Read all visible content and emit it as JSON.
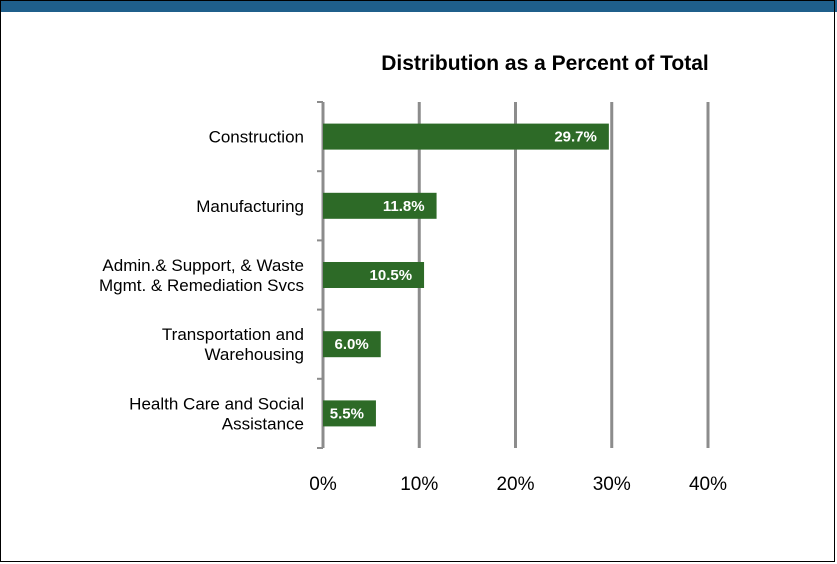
{
  "chart_data": {
    "type": "bar",
    "orientation": "horizontal",
    "title": "Distribution as a Percent of Total",
    "categories": [
      [
        "Construction"
      ],
      [
        "Manufacturing"
      ],
      [
        "Admin.& Support, & Waste",
        "Mgmt. & Remediation Svcs"
      ],
      [
        "Transportation and",
        "Warehousing"
      ],
      [
        "Health Care and Social",
        "Assistance"
      ]
    ],
    "values": [
      29.7,
      11.8,
      10.5,
      6.0,
      5.5
    ],
    "data_labels": [
      "29.7%",
      "11.8%",
      "10.5%",
      "6.0%",
      "5.5%"
    ],
    "xlim": [
      0,
      40
    ],
    "xticks": [
      "0%",
      "10%",
      "20%",
      "30%",
      "40%"
    ],
    "grid": "vertical",
    "bar_color": "#2d6a27",
    "accent_color": "#1f5f8b"
  }
}
